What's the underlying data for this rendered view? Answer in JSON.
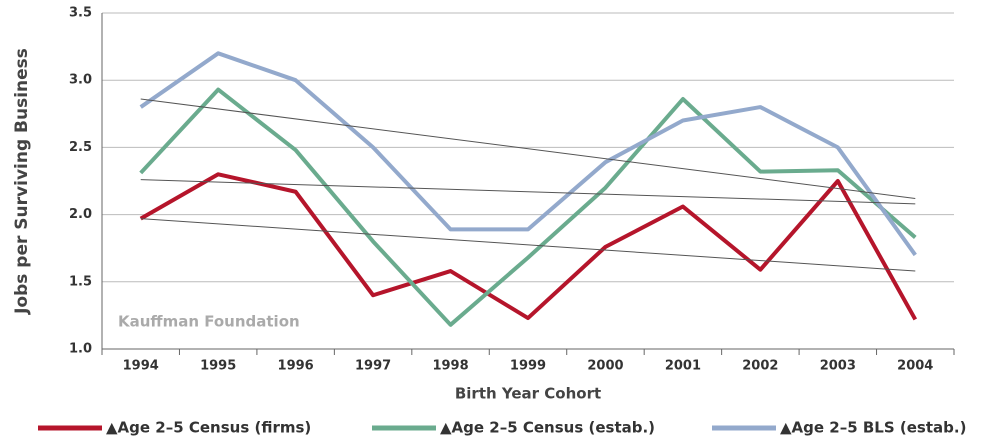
{
  "chart_data": {
    "type": "line",
    "y_label": "Jobs per Surviving Business",
    "x_label": "Birth Year Cohort",
    "watermark": "Kauffman Foundation",
    "categories": [
      "1994",
      "1995",
      "1996",
      "1997",
      "1998",
      "1999",
      "2000",
      "2001",
      "2002",
      "2003",
      "2004"
    ],
    "series": [
      {
        "name": "▲Age 2–5 Census (firms)",
        "color": "#b5152b",
        "values": [
          1.97,
          2.3,
          2.17,
          1.4,
          1.58,
          1.23,
          1.76,
          2.06,
          1.59,
          2.25,
          1.22
        ]
      },
      {
        "name": "▲Age 2–5 Census (estab.)",
        "color": "#6aab8e",
        "values": [
          2.31,
          2.93,
          2.48,
          1.8,
          1.18,
          1.68,
          2.2,
          2.86,
          2.32,
          2.33,
          1.83
        ]
      },
      {
        "name": "▲Age 2–5 BLS (estab.)",
        "color": "#93a9cc",
        "values": [
          2.8,
          3.2,
          3.0,
          2.5,
          1.89,
          1.89,
          2.39,
          2.7,
          2.8,
          2.5,
          1.7
        ]
      }
    ],
    "trend_lines": [
      {
        "color": "#555555",
        "values": [
          1.97,
          1.58
        ]
      },
      {
        "color": "#555555",
        "values": [
          2.26,
          2.08
        ]
      },
      {
        "color": "#555555",
        "values": [
          2.86,
          2.12
        ]
      }
    ],
    "ylim": [
      1.0,
      3.5
    ],
    "yticks": [
      {
        "value": 1.0,
        "label": "1.0"
      },
      {
        "value": 1.5,
        "label": "1.5"
      },
      {
        "value": 2.0,
        "label": "2.0"
      },
      {
        "value": 2.5,
        "label": "2.5"
      },
      {
        "value": 3.0,
        "label": "3.0"
      },
      {
        "value": 3.5,
        "label": "3.5"
      }
    ],
    "grid": true
  }
}
